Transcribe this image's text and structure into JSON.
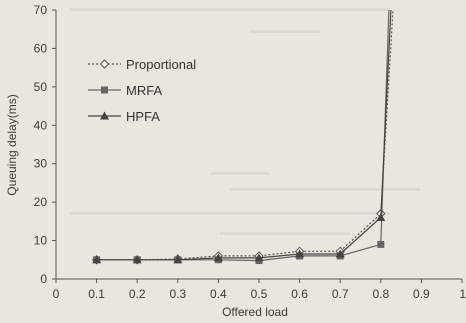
{
  "chart_data": {
    "type": "line",
    "xlabel": "Offered load",
    "ylabel": "Queuing delay(ms)",
    "xlim": [
      0,
      1
    ],
    "ylim": [
      0,
      70
    ],
    "x_ticks": [
      "0",
      "0.1",
      "0.2",
      "0.3",
      "0.4",
      "0.5",
      "0.6",
      "0.7",
      "0.8",
      "0.9",
      "1"
    ],
    "y_ticks": [
      "0",
      "10",
      "20",
      "30",
      "40",
      "50",
      "60",
      "70"
    ],
    "grid": false,
    "legend_position": "top-left",
    "series": [
      {
        "name": "Proportional",
        "style": "dotted",
        "marker": "diamond",
        "color": "#555555",
        "x": [
          0.1,
          0.2,
          0.3,
          0.4,
          0.5,
          0.6,
          0.7,
          0.8,
          0.83
        ],
        "y": [
          5.0,
          5.0,
          5.2,
          6.0,
          6.0,
          7.2,
          7.2,
          17.0,
          70
        ]
      },
      {
        "name": "MRFA",
        "style": "solid",
        "marker": "square",
        "color": "#666666",
        "x": [
          0.1,
          0.2,
          0.3,
          0.4,
          0.5,
          0.6,
          0.7,
          0.8,
          0.82
        ],
        "y": [
          5.0,
          5.0,
          5.0,
          5.0,
          4.8,
          6.0,
          6.0,
          9.0,
          70
        ]
      },
      {
        "name": "HPFA",
        "style": "solid",
        "marker": "triangle",
        "color": "#444444",
        "x": [
          0.1,
          0.2,
          0.3,
          0.4,
          0.5,
          0.6,
          0.7,
          0.8,
          0.825
        ],
        "y": [
          5.0,
          5.0,
          5.0,
          5.5,
          5.5,
          6.5,
          6.5,
          16.0,
          70
        ]
      }
    ]
  }
}
